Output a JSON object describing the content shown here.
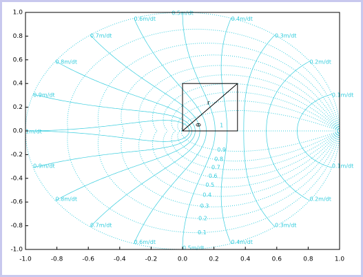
{
  "chart_data": {
    "type": "zgrid",
    "xlim": [
      -1,
      1
    ],
    "ylim": [
      -1,
      1
    ],
    "xticks": [
      {
        "value": -1,
        "label": "-1.0"
      },
      -0.8,
      -0.6,
      -0.4,
      -0.2,
      {
        "value": 0,
        "label": "0.0"
      },
      0.2,
      0.4,
      0.6,
      0.8,
      {
        "value": 1,
        "label": "1.0"
      }
    ],
    "yticks": [
      {
        "value": -1,
        "label": "-1.0"
      },
      -0.8,
      -0.6,
      -0.4,
      -0.2,
      {
        "value": 0,
        "label": "0.0"
      },
      0.2,
      0.4,
      0.6,
      0.8,
      {
        "value": 1,
        "label": "1.0"
      }
    ],
    "color": "#33ccdd",
    "damping_ratios": [
      0.1,
      0.2,
      0.3,
      0.4,
      0.5,
      0.6,
      0.7,
      0.8,
      0.9,
      1
    ],
    "frequencies_upper": [
      {
        "value": 0.1,
        "label": "0.1m/dt"
      },
      {
        "value": 0.2,
        "label": "0.2m/dt"
      },
      {
        "value": 0.3,
        "label": "0.3m/dt"
      },
      {
        "value": 0.4,
        "label": "0.4m/dt"
      },
      {
        "value": 0.5,
        "label": "0.5m/dt"
      },
      {
        "value": 0.6,
        "label": "0.6m/dt"
      },
      {
        "value": 0.7,
        "label": "0.7m/dt"
      },
      {
        "value": 0.8,
        "label": "0.8m/dt"
      },
      {
        "value": 0.9,
        "label": "0.9m/dt"
      },
      {
        "value": 1,
        "label": "1m/dt"
      }
    ],
    "frequencies_lower": [
      {
        "value": 0.1,
        "label": "0.1m/dt"
      },
      {
        "value": 0.2,
        "label": "0.2m/dt"
      },
      {
        "value": 0.3,
        "label": "0.3m/dt"
      },
      {
        "value": 0.4,
        "label": "0.4m/dt"
      },
      {
        "value": 0.5,
        "label": "0.5m/dt"
      },
      {
        "value": 0.6,
        "label": "0.6m/dt"
      },
      {
        "value": 0.7,
        "label": "0.7m/dt"
      },
      {
        "value": 0.8,
        "label": "0.8m/dt"
      },
      {
        "value": 0.9,
        "label": "0.9m/dt"
      }
    ],
    "annotations": {
      "radius": "r",
      "angle": "θ"
    }
  }
}
